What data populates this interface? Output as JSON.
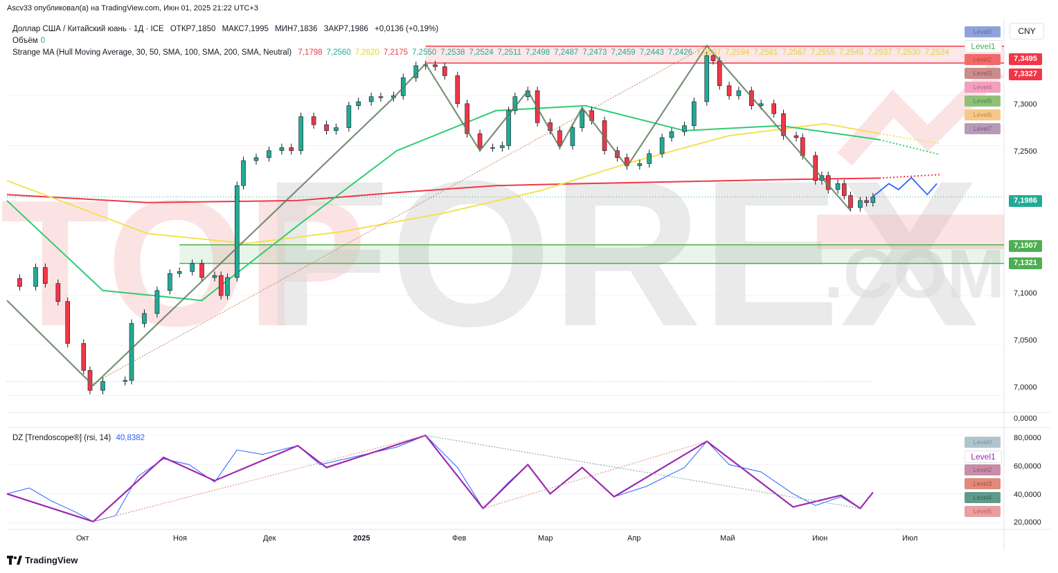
{
  "header": {
    "published_by": "Ascv33 опубликовал(а) на TradingView.com, Июн 01, 2025 21:22 UTC+3"
  },
  "legend": {
    "symbol": "Доллар США / Китайский юань · 1Д · ICE",
    "open": "ОТКР7,1850",
    "high": "МАКС7,1995",
    "low": "МИН7,1836",
    "close": "ЗАКР7,1986",
    "change": "+0,0136 (+0,19%)",
    "volume_label": "Объём",
    "volume_value": "0",
    "indicator_name": "Strange MA (Hull Moving Average, 30, 50, SMA, 100, SMA, 200, SMA, Neutral)",
    "indicator_values": [
      {
        "v": "7,1798",
        "c": "#f23645"
      },
      {
        "v": "7,2560",
        "c": "#22ab94"
      },
      {
        "v": "7,2620",
        "c": "#e8d12a"
      },
      {
        "v": "7,2175",
        "c": "#f23645"
      },
      {
        "v": "7,2550",
        "c": "#22ab94"
      },
      {
        "v": "7,2538",
        "c": "#22ab94"
      },
      {
        "v": "7,2524",
        "c": "#22ab94"
      },
      {
        "v": "7,2511",
        "c": "#22ab94"
      },
      {
        "v": "7,2498",
        "c": "#22ab94"
      },
      {
        "v": "7,2487",
        "c": "#22ab94"
      },
      {
        "v": "7,2473",
        "c": "#22ab94"
      },
      {
        "v": "7,2459",
        "c": "#22ab94"
      },
      {
        "v": "7,2443",
        "c": "#22ab94"
      },
      {
        "v": "7,2426",
        "c": "#22ab94"
      },
      {
        "v": "7,2607",
        "c": "#e8d12a"
      },
      {
        "v": "7,2594",
        "c": "#e8d12a"
      },
      {
        "v": "7,2581",
        "c": "#e8d12a"
      },
      {
        "v": "7,2567",
        "c": "#e8d12a"
      },
      {
        "v": "7,2555",
        "c": "#e8d12a"
      },
      {
        "v": "7,2545",
        "c": "#e8d12a"
      },
      {
        "v": "7,2537",
        "c": "#e8d12a"
      },
      {
        "v": "7,2530",
        "c": "#e8d12a"
      },
      {
        "v": "7,2524",
        "c": "#e8d12a"
      }
    ]
  },
  "currency_button": "CNY",
  "price_levels": {
    "resistance_1": "7,3495",
    "resistance_2": "7,3327",
    "current": "7,1986",
    "support_1": "7,1507",
    "support_2": "7,1321"
  },
  "colors": {
    "up_candle": "#22ab94",
    "down_candle": "#f23645",
    "resistance": "#f23645",
    "support": "#4caf50",
    "current_price": "#22ab94",
    "ma_red": "#f23645",
    "ma_green": "#2ecc71",
    "ma_yellow": "#f5e050",
    "zigzag": "#607d60",
    "rsi_line": "#2962ff",
    "rsi_zigzag": "#9c27b0",
    "forecast": "#2962ff"
  },
  "level_labels_top": [
    {
      "label": "Level0",
      "bg": "#8fa3d9",
      "fg": "#5a6fb0"
    },
    {
      "label": "Level1",
      "bg": "#ffffff",
      "fg": "#4caf50"
    },
    {
      "label": "Level2",
      "bg": "#f26b6b",
      "fg": "#c43c3c"
    },
    {
      "label": "Level3",
      "bg": "#c98d8d",
      "fg": "#9a5555"
    },
    {
      "label": "Level4",
      "bg": "#f2a0c0",
      "fg": "#c0628a"
    },
    {
      "label": "Level5",
      "bg": "#8fc07a",
      "fg": "#4f8a3a"
    },
    {
      "label": "Level6",
      "bg": "#f8c88a",
      "fg": "#c2864a"
    },
    {
      "label": "Level7",
      "bg": "#b79ab8",
      "fg": "#7d5a80"
    }
  ],
  "level_labels_rsi": [
    {
      "label": "Level0",
      "bg": "#b0c4cc",
      "fg": "#7a949e"
    },
    {
      "label": "Level1",
      "bg": "#ffffff",
      "fg": "#9c27b0"
    },
    {
      "label": "Level2",
      "bg": "#c98da8",
      "fg": "#9a5575"
    },
    {
      "label": "Level3",
      "bg": "#e08a7a",
      "fg": "#a8503e"
    },
    {
      "label": "Level4",
      "bg": "#5f9a8a",
      "fg": "#2f6a5a"
    },
    {
      "label": "Level5",
      "bg": "#e8a0a0",
      "fg": "#b86060"
    }
  ],
  "price_axis_labels": [
    "7,3000",
    "7,2500",
    "7,1000",
    "7,0500",
    "7,0000",
    "0,0000"
  ],
  "time_axis_labels": [
    "Окт",
    "Ноя",
    "Дек",
    "2025",
    "Фев",
    "Мар",
    "Апр",
    "Май",
    "Июн",
    "Июл"
  ],
  "rsi": {
    "legend_name": "DZ [Trendoscope®] (rsi, 14)",
    "legend_value": "40,8382",
    "axis_labels": [
      "80,0000",
      "60,0000",
      "40,0000",
      "20,0000"
    ]
  },
  "watermark": {
    "main": "FOREX",
    "prefix": "TOP",
    "suffix": ".COM"
  },
  "footer": {
    "logo_text": "TradingView"
  },
  "chart_data": [
    {
      "type": "candlestick",
      "title": "Доллар США / Китайский юань · 1Д · ICE",
      "x_range": [
        "2024-09-01",
        "2025-07-10"
      ],
      "ylim": [
        6.985,
        7.375
      ],
      "close_series": [
        {
          "d": "2024-09-01",
          "v": 7.117
        },
        {
          "d": "2024-09-05",
          "v": 7.109
        },
        {
          "d": "2024-09-10",
          "v": 7.128
        },
        {
          "d": "2024-09-13",
          "v": 7.112
        },
        {
          "d": "2024-09-17",
          "v": 7.094
        },
        {
          "d": "2024-09-20",
          "v": 7.052
        },
        {
          "d": "2024-09-25",
          "v": 7.025
        },
        {
          "d": "2024-09-27",
          "v": 7.005
        },
        {
          "d": "2024-10-01",
          "v": 7.014
        },
        {
          "d": "2024-10-08",
          "v": 7.015
        },
        {
          "d": "2024-10-10",
          "v": 7.072
        },
        {
          "d": "2024-10-14",
          "v": 7.082
        },
        {
          "d": "2024-10-18",
          "v": 7.105
        },
        {
          "d": "2024-10-22",
          "v": 7.122
        },
        {
          "d": "2024-10-25",
          "v": 7.124
        },
        {
          "d": "2024-10-29",
          "v": 7.132
        },
        {
          "d": "2024-11-01",
          "v": 7.118
        },
        {
          "d": "2024-11-05",
          "v": 7.12
        },
        {
          "d": "2024-11-07",
          "v": 7.1
        },
        {
          "d": "2024-11-09",
          "v": 7.118
        },
        {
          "d": "2024-11-12",
          "v": 7.21
        },
        {
          "d": "2024-11-14",
          "v": 7.235
        },
        {
          "d": "2024-11-18",
          "v": 7.238
        },
        {
          "d": "2024-11-22",
          "v": 7.245
        },
        {
          "d": "2024-11-26",
          "v": 7.248
        },
        {
          "d": "2024-11-29",
          "v": 7.245
        },
        {
          "d": "2024-12-02",
          "v": 7.279
        },
        {
          "d": "2024-12-06",
          "v": 7.271
        },
        {
          "d": "2024-12-10",
          "v": 7.265
        },
        {
          "d": "2024-12-13",
          "v": 7.268
        },
        {
          "d": "2024-12-17",
          "v": 7.29
        },
        {
          "d": "2024-12-20",
          "v": 7.294
        },
        {
          "d": "2024-12-24",
          "v": 7.299
        },
        {
          "d": "2024-12-27",
          "v": 7.298
        },
        {
          "d": "2024-12-31",
          "v": 7.3
        },
        {
          "d": "2025-01-03",
          "v": 7.318
        },
        {
          "d": "2025-01-07",
          "v": 7.33
        },
        {
          "d": "2025-01-10",
          "v": 7.331
        },
        {
          "d": "2025-01-13",
          "v": 7.329
        },
        {
          "d": "2025-01-16",
          "v": 7.32
        },
        {
          "d": "2025-01-20",
          "v": 7.292
        },
        {
          "d": "2025-01-23",
          "v": 7.262
        },
        {
          "d": "2025-01-27",
          "v": 7.248
        },
        {
          "d": "2025-01-31",
          "v": 7.248
        },
        {
          "d": "2025-02-03",
          "v": 7.25
        },
        {
          "d": "2025-02-05",
          "v": 7.285
        },
        {
          "d": "2025-02-07",
          "v": 7.299
        },
        {
          "d": "2025-02-11",
          "v": 7.305
        },
        {
          "d": "2025-02-14",
          "v": 7.273
        },
        {
          "d": "2025-02-18",
          "v": 7.265
        },
        {
          "d": "2025-02-21",
          "v": 7.25
        },
        {
          "d": "2025-02-25",
          "v": 7.268
        },
        {
          "d": "2025-02-28",
          "v": 7.285
        },
        {
          "d": "2025-03-03",
          "v": 7.275
        },
        {
          "d": "2025-03-07",
          "v": 7.245
        },
        {
          "d": "2025-03-11",
          "v": 7.238
        },
        {
          "d": "2025-03-14",
          "v": 7.23
        },
        {
          "d": "2025-03-18",
          "v": 7.232
        },
        {
          "d": "2025-03-21",
          "v": 7.242
        },
        {
          "d": "2025-03-25",
          "v": 7.258
        },
        {
          "d": "2025-03-28",
          "v": 7.264
        },
        {
          "d": "2025-04-01",
          "v": 7.27
        },
        {
          "d": "2025-04-04",
          "v": 7.294
        },
        {
          "d": "2025-04-08",
          "v": 7.34
        },
        {
          "d": "2025-04-10",
          "v": 7.335
        },
        {
          "d": "2025-04-12",
          "v": 7.31
        },
        {
          "d": "2025-04-15",
          "v": 7.3
        },
        {
          "d": "2025-04-18",
          "v": 7.305
        },
        {
          "d": "2025-04-22",
          "v": 7.29
        },
        {
          "d": "2025-04-25",
          "v": 7.292
        },
        {
          "d": "2025-04-29",
          "v": 7.282
        },
        {
          "d": "2025-05-02",
          "v": 7.26
        },
        {
          "d": "2025-05-06",
          "v": 7.258
        },
        {
          "d": "2025-05-08",
          "v": 7.24
        },
        {
          "d": "2025-05-12",
          "v": 7.215
        },
        {
          "d": "2025-05-14",
          "v": 7.22
        },
        {
          "d": "2025-05-16",
          "v": 7.206
        },
        {
          "d": "2025-05-19",
          "v": 7.212
        },
        {
          "d": "2025-05-21",
          "v": 7.2
        },
        {
          "d": "2025-05-23",
          "v": 7.188
        },
        {
          "d": "2025-05-26",
          "v": 7.195
        },
        {
          "d": "2025-05-28",
          "v": 7.193
        },
        {
          "d": "2025-05-30",
          "v": 7.1986
        }
      ],
      "ma_200_red": [
        {
          "d": "2024-09-01",
          "v": 7.201
        },
        {
          "d": "2024-10-15",
          "v": 7.193
        },
        {
          "d": "2024-12-01",
          "v": 7.195
        },
        {
          "d": "2025-01-01",
          "v": 7.203
        },
        {
          "d": "2025-02-01",
          "v": 7.21
        },
        {
          "d": "2025-03-01",
          "v": 7.212
        },
        {
          "d": "2025-04-01",
          "v": 7.214
        },
        {
          "d": "2025-05-01",
          "v": 7.216
        },
        {
          "d": "2025-06-01",
          "v": 7.2175
        }
      ],
      "ma_100_yellow": [
        {
          "d": "2024-09-01",
          "v": 7.215
        },
        {
          "d": "2024-10-15",
          "v": 7.162
        },
        {
          "d": "2024-11-15",
          "v": 7.152
        },
        {
          "d": "2024-12-15",
          "v": 7.164
        },
        {
          "d": "2025-01-15",
          "v": 7.182
        },
        {
          "d": "2025-02-15",
          "v": 7.205
        },
        {
          "d": "2025-03-15",
          "v": 7.233
        },
        {
          "d": "2025-04-15",
          "v": 7.26
        },
        {
          "d": "2025-05-15",
          "v": 7.272
        },
        {
          "d": "2025-06-01",
          "v": 7.262
        }
      ],
      "ma_50_green": [
        {
          "d": "2024-09-01",
          "v": 7.195
        },
        {
          "d": "2024-10-01",
          "v": 7.105
        },
        {
          "d": "2024-11-01",
          "v": 7.095
        },
        {
          "d": "2024-12-01",
          "v": 7.17
        },
        {
          "d": "2025-01-01",
          "v": 7.245
        },
        {
          "d": "2025-02-01",
          "v": 7.285
        },
        {
          "d": "2025-03-01",
          "v": 7.29
        },
        {
          "d": "2025-04-01",
          "v": 7.265
        },
        {
          "d": "2025-05-01",
          "v": 7.27
        },
        {
          "d": "2025-06-01",
          "v": 7.256
        }
      ],
      "horizontal_levels": [
        7.3495,
        7.3327,
        7.1507,
        7.1321,
        7.1986
      ],
      "volume": 0
    },
    {
      "type": "line",
      "title": "DZ [Trendoscope®] (rsi, 14)",
      "x_range": [
        "2024-09-01",
        "2025-07-10"
      ],
      "ylim": [
        18,
        82
      ],
      "series": [
        {
          "name": "rsi",
          "values": [
            {
              "d": "2024-09-01",
              "v": 40
            },
            {
              "d": "2024-09-08",
              "v": 44
            },
            {
              "d": "2024-09-15",
              "v": 35
            },
            {
              "d": "2024-09-22",
              "v": 28
            },
            {
              "d": "2024-09-28",
              "v": 21
            },
            {
              "d": "2024-10-05",
              "v": 25
            },
            {
              "d": "2024-10-12",
              "v": 52
            },
            {
              "d": "2024-10-20",
              "v": 64
            },
            {
              "d": "2024-10-28",
              "v": 60
            },
            {
              "d": "2024-11-05",
              "v": 48
            },
            {
              "d": "2024-11-12",
              "v": 70
            },
            {
              "d": "2024-11-20",
              "v": 67
            },
            {
              "d": "2024-12-01",
              "v": 73
            },
            {
              "d": "2024-12-08",
              "v": 60
            },
            {
              "d": "2024-12-20",
              "v": 66
            },
            {
              "d": "2025-01-01",
              "v": 72
            },
            {
              "d": "2025-01-10",
              "v": 80
            },
            {
              "d": "2025-01-20",
              "v": 58
            },
            {
              "d": "2025-01-28",
              "v": 30
            },
            {
              "d": "2025-02-05",
              "v": 48
            },
            {
              "d": "2025-02-11",
              "v": 60
            },
            {
              "d": "2025-02-18",
              "v": 40
            },
            {
              "d": "2025-02-28",
              "v": 58
            },
            {
              "d": "2025-03-10",
              "v": 38
            },
            {
              "d": "2025-03-20",
              "v": 45
            },
            {
              "d": "2025-04-01",
              "v": 58
            },
            {
              "d": "2025-04-08",
              "v": 76
            },
            {
              "d": "2025-04-15",
              "v": 60
            },
            {
              "d": "2025-04-25",
              "v": 55
            },
            {
              "d": "2025-05-05",
              "v": 40
            },
            {
              "d": "2025-05-12",
              "v": 32
            },
            {
              "d": "2025-05-20",
              "v": 38
            },
            {
              "d": "2025-05-26",
              "v": 30
            },
            {
              "d": "2025-05-30",
              "v": 40.84
            }
          ]
        },
        {
          "name": "zigzag",
          "values": [
            {
              "d": "2024-09-01",
              "v": 40
            },
            {
              "d": "2024-09-28",
              "v": 21
            },
            {
              "d": "2024-10-20",
              "v": 65
            },
            {
              "d": "2024-11-05",
              "v": 49
            },
            {
              "d": "2024-12-01",
              "v": 73
            },
            {
              "d": "2024-12-10",
              "v": 58
            },
            {
              "d": "2025-01-10",
              "v": 80
            },
            {
              "d": "2025-01-28",
              "v": 30
            },
            {
              "d": "2025-02-11",
              "v": 60
            },
            {
              "d": "2025-02-18",
              "v": 40
            },
            {
              "d": "2025-02-28",
              "v": 58
            },
            {
              "d": "2025-03-10",
              "v": 38
            },
            {
              "d": "2025-04-08",
              "v": 76
            },
            {
              "d": "2025-05-05",
              "v": 31
            },
            {
              "d": "2025-05-20",
              "v": 39
            },
            {
              "d": "2025-05-26",
              "v": 30
            },
            {
              "d": "2025-05-30",
              "v": 41
            }
          ]
        }
      ]
    }
  ]
}
